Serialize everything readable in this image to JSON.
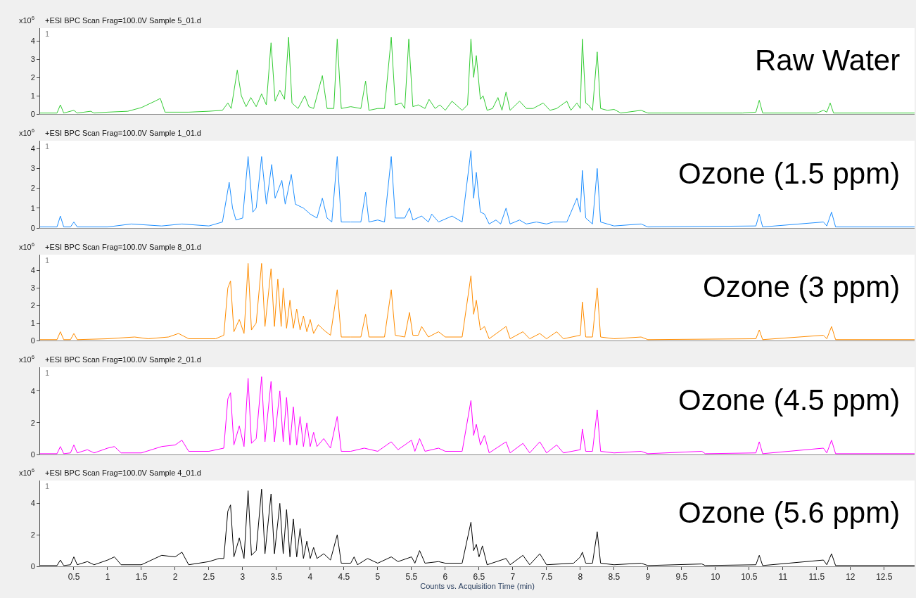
{
  "chart_data": [
    {
      "type": "line",
      "title": "+ESI BPC Scan Frag=100.0V Sample 5_01.d",
      "ylabel": "x10$^{6}$",
      "annotations": [
        "1",
        "Raw Water"
      ],
      "xlim": [
        0,
        12.95
      ],
      "ylim": [
        0,
        4.7
      ],
      "yticks": [
        0,
        1,
        2,
        3,
        4
      ],
      "tick_labels": "y",
      "x": [
        0,
        0.25,
        0.3,
        0.35,
        0.5,
        0.55,
        0.75,
        0.8,
        1.0,
        1.3,
        1.5,
        1.7,
        1.78,
        1.85,
        2.2,
        2.5,
        2.7,
        2.78,
        2.83,
        2.92,
        2.98,
        3.05,
        3.12,
        3.2,
        3.28,
        3.35,
        3.42,
        3.48,
        3.55,
        3.62,
        3.68,
        3.73,
        3.82,
        3.92,
        3.98,
        4.05,
        4.18,
        4.25,
        4.35,
        4.4,
        4.46,
        4.6,
        4.75,
        4.82,
        4.87,
        5.0,
        5.1,
        5.2,
        5.26,
        5.35,
        5.4,
        5.46,
        5.52,
        5.6,
        5.7,
        5.76,
        5.85,
        5.92,
        6.0,
        6.1,
        6.25,
        6.33,
        6.38,
        6.42,
        6.46,
        6.52,
        6.56,
        6.62,
        6.7,
        6.78,
        6.84,
        6.9,
        6.96,
        7.1,
        7.2,
        7.3,
        7.45,
        7.55,
        7.65,
        7.8,
        7.86,
        7.95,
        8.0,
        8.03,
        8.08,
        8.12,
        8.18,
        8.25,
        8.3,
        8.4,
        8.5,
        8.6,
        8.9,
        9.0,
        9.2,
        10.4,
        10.6,
        10.65,
        10.7,
        11.5,
        11.6,
        11.65,
        11.7,
        11.75,
        12.95
      ],
      "series": [
        {
          "color": "#33cc33",
          "values": [
            0.05,
            0.05,
            0.5,
            0.05,
            0.2,
            0.05,
            0.15,
            0.05,
            0.1,
            0.15,
            0.35,
            0.7,
            0.85,
            0.1,
            0.1,
            0.15,
            0.2,
            0.6,
            0.3,
            2.4,
            1.0,
            0.4,
            0.9,
            0.4,
            1.1,
            0.5,
            3.9,
            0.7,
            1.3,
            0.8,
            4.2,
            0.6,
            0.3,
            1.0,
            0.4,
            0.3,
            2.1,
            0.3,
            0.3,
            4.1,
            0.3,
            0.4,
            0.3,
            1.8,
            0.2,
            0.3,
            0.3,
            4.2,
            0.5,
            0.6,
            0.3,
            4.1,
            0.4,
            0.5,
            0.3,
            0.8,
            0.3,
            0.5,
            0.2,
            0.7,
            0.2,
            0.5,
            4.1,
            2.0,
            3.2,
            0.8,
            1.0,
            0.2,
            0.3,
            0.9,
            0.2,
            1.2,
            0.2,
            0.7,
            0.3,
            0.3,
            0.6,
            0.2,
            0.3,
            0.7,
            0.2,
            0.6,
            0.3,
            4.1,
            0.6,
            0.5,
            0.2,
            3.4,
            0.3,
            0.2,
            0.25,
            0.05,
            0.2,
            0.05,
            0.05,
            0.05,
            0.1,
            0.75,
            0.05,
            0.05,
            0.2,
            0.1,
            0.6,
            0.05,
            0.05
          ]
        }
      ]
    },
    {
      "type": "line",
      "title": "+ESI BPC Scan Frag=100.0V Sample 1_01.d",
      "ylabel": "x10$^{6}$",
      "annotations": [
        "1",
        "Ozone (1.5 ppm)"
      ],
      "xlim": [
        0,
        12.95
      ],
      "ylim": [
        0,
        4.4
      ],
      "yticks": [
        0,
        1,
        2,
        3,
        4
      ],
      "tick_labels": "y",
      "x": [
        0,
        0.25,
        0.3,
        0.35,
        0.45,
        0.5,
        0.55,
        1.0,
        1.35,
        1.8,
        2.1,
        2.5,
        2.7,
        2.8,
        2.85,
        2.9,
        3.0,
        3.08,
        3.15,
        3.2,
        3.28,
        3.35,
        3.43,
        3.48,
        3.58,
        3.63,
        3.72,
        3.78,
        3.9,
        4.0,
        4.1,
        4.18,
        4.25,
        4.32,
        4.4,
        4.46,
        4.6,
        4.75,
        4.82,
        4.87,
        5.0,
        5.1,
        5.2,
        5.26,
        5.4,
        5.47,
        5.52,
        5.65,
        5.75,
        5.8,
        5.9,
        6.1,
        6.25,
        6.38,
        6.42,
        6.46,
        6.52,
        6.58,
        6.65,
        6.75,
        6.82,
        6.9,
        6.96,
        7.1,
        7.2,
        7.35,
        7.5,
        7.6,
        7.8,
        7.95,
        8.0,
        8.03,
        8.08,
        8.18,
        8.25,
        8.3,
        8.5,
        8.9,
        9.0,
        10.6,
        10.65,
        10.7,
        11.6,
        11.65,
        11.72,
        11.78,
        12.95
      ],
      "series": [
        {
          "color": "#1e8fff",
          "values": [
            0.05,
            0.05,
            0.6,
            0.05,
            0.05,
            0.3,
            0.05,
            0.05,
            0.2,
            0.1,
            0.2,
            0.1,
            0.3,
            2.3,
            1.0,
            0.4,
            0.5,
            3.6,
            0.8,
            1.0,
            3.6,
            1.2,
            3.2,
            1.5,
            2.4,
            1.2,
            2.7,
            1.2,
            1.0,
            0.7,
            0.5,
            1.5,
            0.5,
            0.3,
            3.6,
            0.3,
            0.3,
            0.3,
            1.8,
            0.3,
            0.4,
            0.3,
            3.6,
            0.5,
            0.5,
            1.0,
            0.4,
            0.6,
            0.3,
            0.7,
            0.3,
            0.6,
            0.3,
            3.9,
            1.5,
            2.8,
            0.8,
            0.7,
            0.2,
            0.4,
            0.2,
            1.0,
            0.2,
            0.4,
            0.2,
            0.3,
            0.2,
            0.3,
            0.3,
            1.5,
            0.8,
            2.9,
            0.5,
            0.2,
            3.0,
            0.3,
            0.1,
            0.2,
            0.05,
            0.1,
            0.7,
            0.05,
            0.3,
            0.1,
            0.8,
            0.05,
            0.05
          ]
        }
      ]
    },
    {
      "type": "line",
      "title": "+ESI BPC Scan Frag=100.0V Sample 8_01.d",
      "ylabel": "x10$^{6}$",
      "annotations": [
        "1",
        "Ozone (3 ppm)"
      ],
      "xlim": [
        0,
        12.95
      ],
      "ylim": [
        0,
        4.9
      ],
      "yticks": [
        0,
        1,
        2,
        3,
        4
      ],
      "tick_labels": "y",
      "x": [
        0,
        0.25,
        0.3,
        0.35,
        0.45,
        0.5,
        0.55,
        1.0,
        1.4,
        1.6,
        1.9,
        2.05,
        2.2,
        2.6,
        2.72,
        2.78,
        2.82,
        2.87,
        2.95,
        3.02,
        3.08,
        3.13,
        3.2,
        3.28,
        3.33,
        3.42,
        3.47,
        3.52,
        3.57,
        3.6,
        3.65,
        3.7,
        3.75,
        3.8,
        3.85,
        3.9,
        3.95,
        4.0,
        4.05,
        4.12,
        4.2,
        4.3,
        4.4,
        4.46,
        4.6,
        4.75,
        4.82,
        4.87,
        5.1,
        5.2,
        5.26,
        5.4,
        5.47,
        5.52,
        5.6,
        5.65,
        5.75,
        5.9,
        6.0,
        6.25,
        6.38,
        6.42,
        6.46,
        6.52,
        6.58,
        6.65,
        6.9,
        6.96,
        7.15,
        7.25,
        7.4,
        7.5,
        7.65,
        7.75,
        8.0,
        8.03,
        8.08,
        8.18,
        8.25,
        8.3,
        8.5,
        8.9,
        9.0,
        10.6,
        10.65,
        10.7,
        11.6,
        11.65,
        11.72,
        11.78,
        12.95
      ],
      "series": [
        {
          "color": "#ff8c00",
          "values": [
            0.05,
            0.05,
            0.5,
            0.05,
            0.05,
            0.4,
            0.05,
            0.1,
            0.2,
            0.1,
            0.2,
            0.4,
            0.1,
            0.1,
            0.3,
            3.0,
            3.4,
            0.5,
            1.2,
            0.4,
            4.4,
            0.6,
            1.0,
            4.4,
            0.8,
            4.1,
            0.8,
            3.5,
            0.8,
            3.0,
            0.7,
            2.3,
            0.7,
            1.8,
            0.6,
            1.4,
            0.5,
            1.2,
            0.4,
            0.9,
            0.6,
            0.3,
            2.9,
            0.2,
            0.2,
            0.2,
            1.5,
            0.2,
            0.2,
            2.9,
            0.3,
            0.2,
            1.6,
            0.3,
            0.3,
            0.8,
            0.2,
            0.5,
            0.2,
            0.2,
            3.7,
            1.5,
            2.3,
            0.6,
            0.8,
            0.1,
            0.8,
            0.1,
            0.5,
            0.1,
            0.4,
            0.1,
            0.5,
            0.1,
            0.3,
            2.2,
            0.2,
            0.2,
            3.0,
            0.2,
            0.1,
            0.2,
            0.05,
            0.1,
            0.6,
            0.05,
            0.3,
            0.1,
            0.8,
            0.05,
            0.05
          ]
        }
      ]
    },
    {
      "type": "line",
      "title": "+ESI BPC Scan Frag=100.0V Sample 2_01.d",
      "ylabel": "x10$^{6}$",
      "annotations": [
        "1",
        "Ozone (4.5 ppm)"
      ],
      "xlim": [
        0,
        12.95
      ],
      "ylim": [
        0,
        5.5
      ],
      "yticks": [
        0,
        2,
        4
      ],
      "tick_labels": "y",
      "x": [
        0,
        0.25,
        0.3,
        0.35,
        0.45,
        0.5,
        0.55,
        0.7,
        0.8,
        1.0,
        1.1,
        1.2,
        1.5,
        1.8,
        2.0,
        2.1,
        2.2,
        2.5,
        2.72,
        2.78,
        2.82,
        2.87,
        2.95,
        3.02,
        3.08,
        3.13,
        3.2,
        3.28,
        3.33,
        3.42,
        3.47,
        3.55,
        3.6,
        3.65,
        3.7,
        3.75,
        3.8,
        3.85,
        3.9,
        3.95,
        4.0,
        4.05,
        4.1,
        4.2,
        4.3,
        4.4,
        4.46,
        4.6,
        4.8,
        5.0,
        5.2,
        5.3,
        5.5,
        5.55,
        5.62,
        5.7,
        5.9,
        6.0,
        6.25,
        6.38,
        6.42,
        6.46,
        6.52,
        6.58,
        6.65,
        6.9,
        6.96,
        7.15,
        7.25,
        7.4,
        7.5,
        7.65,
        7.75,
        8.0,
        8.03,
        8.08,
        8.18,
        8.25,
        8.3,
        8.5,
        8.9,
        9.0,
        9.8,
        9.85,
        10.6,
        10.65,
        10.7,
        11.6,
        11.65,
        11.72,
        11.78,
        12.95
      ],
      "series": [
        {
          "color": "#ff00ff",
          "values": [
            0.05,
            0.05,
            0.5,
            0.05,
            0.1,
            0.6,
            0.1,
            0.3,
            0.1,
            0.4,
            0.5,
            0.1,
            0.1,
            0.5,
            0.6,
            0.9,
            0.2,
            0.2,
            0.4,
            3.5,
            3.9,
            0.6,
            1.8,
            0.5,
            4.8,
            0.7,
            1.0,
            4.9,
            0.8,
            4.6,
            0.8,
            4.0,
            0.8,
            3.6,
            0.6,
            3.0,
            0.6,
            2.4,
            0.5,
            2.0,
            0.5,
            1.4,
            0.5,
            1.0,
            0.4,
            2.4,
            0.2,
            0.2,
            0.4,
            0.2,
            0.8,
            0.3,
            0.9,
            0.2,
            1.0,
            0.2,
            0.4,
            0.2,
            0.2,
            3.4,
            1.2,
            1.9,
            0.6,
            1.2,
            0.1,
            0.8,
            0.1,
            0.7,
            0.1,
            0.8,
            0.1,
            0.6,
            0.1,
            0.3,
            1.6,
            0.2,
            0.2,
            2.8,
            0.2,
            0.1,
            0.2,
            0.05,
            0.2,
            0.05,
            0.1,
            0.8,
            0.05,
            0.4,
            0.1,
            0.9,
            0.05,
            0.05
          ]
        }
      ]
    },
    {
      "type": "line",
      "title": "+ESI BPC Scan Frag=100.0V Sample 4_01.d",
      "ylabel": "x10$^{6}$",
      "xlabel": "Counts vs. Acquisition Time (min)",
      "annotations": [
        "1",
        "Ozone (5.6 ppm)"
      ],
      "xlim": [
        0,
        12.95
      ],
      "ylim": [
        0,
        5.45
      ],
      "yticks": [
        0,
        2,
        4
      ],
      "xticks": [
        0.5,
        1,
        1.5,
        2,
        2.5,
        3,
        3.5,
        4,
        4.5,
        5,
        5.5,
        6,
        6.5,
        7,
        7.5,
        8,
        8.5,
        9,
        9.5,
        10,
        10.5,
        11,
        11.5,
        12,
        12.5
      ],
      "x": [
        0,
        0.25,
        0.3,
        0.35,
        0.45,
        0.5,
        0.55,
        0.7,
        0.8,
        1.0,
        1.1,
        1.2,
        1.5,
        1.8,
        2.0,
        2.1,
        2.2,
        2.5,
        2.65,
        2.72,
        2.78,
        2.82,
        2.87,
        2.95,
        3.02,
        3.08,
        3.13,
        3.2,
        3.28,
        3.33,
        3.42,
        3.47,
        3.55,
        3.6,
        3.65,
        3.7,
        3.75,
        3.8,
        3.85,
        3.9,
        3.95,
        4.0,
        4.05,
        4.1,
        4.2,
        4.3,
        4.4,
        4.46,
        4.6,
        4.65,
        4.7,
        4.85,
        5.0,
        5.2,
        5.3,
        5.5,
        5.55,
        5.62,
        5.7,
        5.9,
        6.0,
        6.25,
        6.38,
        6.42,
        6.46,
        6.5,
        6.55,
        6.62,
        6.9,
        6.96,
        7.15,
        7.25,
        7.4,
        7.5,
        7.9,
        8.0,
        8.03,
        8.08,
        8.18,
        8.25,
        8.3,
        8.5,
        8.9,
        9.0,
        9.8,
        9.85,
        10.6,
        10.65,
        10.7,
        11.6,
        11.65,
        11.72,
        11.78,
        12.95
      ],
      "series": [
        {
          "color": "#000000",
          "values": [
            0.05,
            0.05,
            0.4,
            0.05,
            0.1,
            0.6,
            0.1,
            0.3,
            0.1,
            0.4,
            0.6,
            0.1,
            0.1,
            0.7,
            0.6,
            0.9,
            0.1,
            0.3,
            0.5,
            0.5,
            3.5,
            3.9,
            0.6,
            1.8,
            0.5,
            4.8,
            0.7,
            1.0,
            4.9,
            0.8,
            4.6,
            0.8,
            4.0,
            0.8,
            3.6,
            0.6,
            3.0,
            0.6,
            2.4,
            0.5,
            1.6,
            0.5,
            1.2,
            0.5,
            0.8,
            0.4,
            2.0,
            0.2,
            0.2,
            0.6,
            0.1,
            0.5,
            0.2,
            0.6,
            0.3,
            0.6,
            0.2,
            1.0,
            0.2,
            0.3,
            0.2,
            0.2,
            2.8,
            1.0,
            1.4,
            0.6,
            1.3,
            0.1,
            0.5,
            0.1,
            0.7,
            0.1,
            0.8,
            0.1,
            0.2,
            0.6,
            0.9,
            0.2,
            0.2,
            2.2,
            0.2,
            0.1,
            0.2,
            0.05,
            0.15,
            0.05,
            0.1,
            0.7,
            0.05,
            0.4,
            0.1,
            0.8,
            0.05,
            0.05
          ]
        }
      ]
    }
  ]
}
